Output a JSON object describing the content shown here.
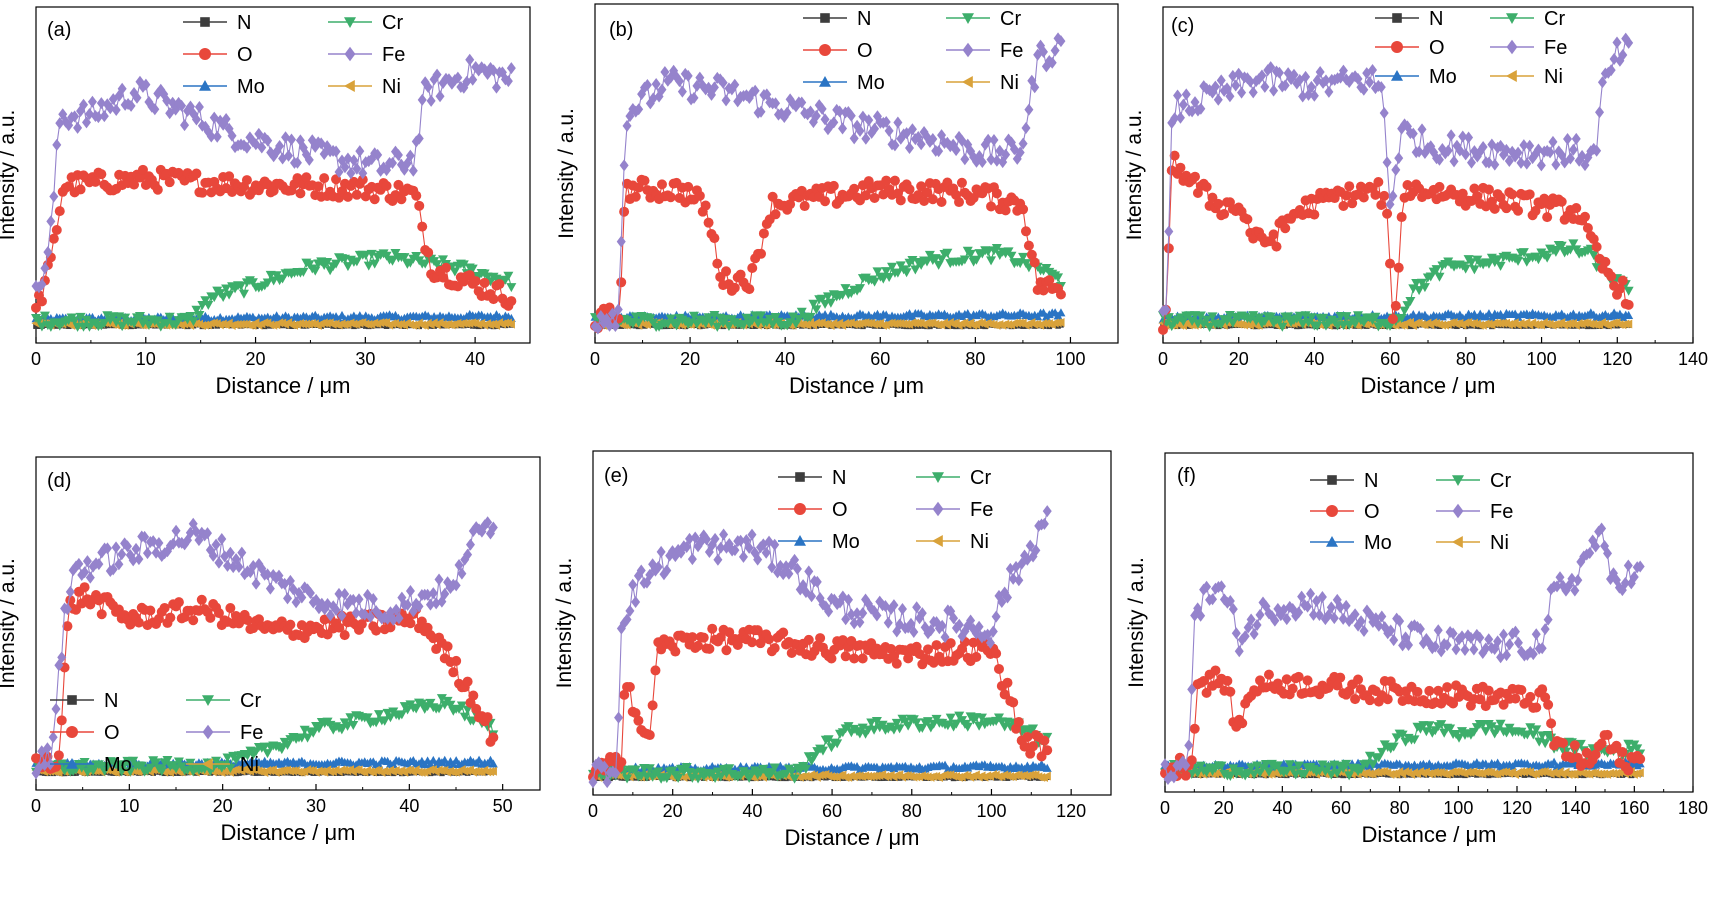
{
  "figure": {
    "series_colors": {
      "N": "#3d3d3d",
      "O": "#e8473b",
      "Mo": "#2a74c4",
      "Cr": "#3dae6b",
      "Fe": "#9583cc",
      "Ni": "#d9a23a"
    },
    "series_markers": {
      "N": "square",
      "O": "circle",
      "Mo": "triangle-up",
      "Cr": "triangle-down",
      "Fe": "diamond",
      "Ni": "triangle-left"
    }
  },
  "chart_data": [
    {
      "type": "line",
      "panel_label": "(a)",
      "xlabel": "Distance / μm",
      "ylabel": "Intensity / a.u.",
      "xlim": [
        0,
        45
      ],
      "xticks": [
        0,
        10,
        20,
        30,
        40
      ],
      "x_max": 43.3,
      "legend": [
        "N",
        "O",
        "Mo",
        "Cr",
        "Fe",
        "Ni"
      ],
      "legend_placement": "top-center",
      "profiles": {
        "Fe": [
          [
            0,
            0.1
          ],
          [
            1.2,
            0.25
          ],
          [
            2.2,
            0.7
          ],
          [
            5,
            0.7
          ],
          [
            9,
            0.78
          ],
          [
            13,
            0.72
          ],
          [
            18,
            0.64
          ],
          [
            22,
            0.6
          ],
          [
            28,
            0.55
          ],
          [
            32,
            0.53
          ],
          [
            34.5,
            0.56
          ],
          [
            35.5,
            0.78
          ],
          [
            40,
            0.85
          ],
          [
            43.3,
            0.82
          ]
        ],
        "O": [
          [
            0,
            0.05
          ],
          [
            1.3,
            0.2
          ],
          [
            2.5,
            0.47
          ],
          [
            10,
            0.49
          ],
          [
            20,
            0.47
          ],
          [
            30,
            0.46
          ],
          [
            34.5,
            0.44
          ],
          [
            36,
            0.2
          ],
          [
            40,
            0.14
          ],
          [
            43.3,
            0.1
          ]
        ],
        "Cr": [
          [
            0,
            0.02
          ],
          [
            14,
            0.02
          ],
          [
            16,
            0.1
          ],
          [
            20,
            0.14
          ],
          [
            25,
            0.2
          ],
          [
            32,
            0.23
          ],
          [
            38,
            0.2
          ],
          [
            43.3,
            0.15
          ]
        ],
        "Mo": [
          [
            0,
            0.025
          ],
          [
            43.3,
            0.035
          ]
        ],
        "N": [
          [
            0,
            0.005
          ],
          [
            43.3,
            0.005
          ]
        ],
        "Ni": [
          [
            0,
            0.01
          ],
          [
            43.3,
            0.01
          ]
        ]
      }
    },
    {
      "type": "line",
      "panel_label": "(b)",
      "xlabel": "Distance / μm",
      "ylabel": "Intensity / a.u.",
      "xlim": [
        0,
        110
      ],
      "xticks": [
        0,
        20,
        40,
        60,
        80,
        100
      ],
      "x_max": 98,
      "legend": [
        "N",
        "O",
        "Mo",
        "Cr",
        "Fe",
        "Ni"
      ],
      "legend_placement": "top-right",
      "profiles": {
        "Fe": [
          [
            0,
            0.03
          ],
          [
            5,
            0.05
          ],
          [
            6.5,
            0.7
          ],
          [
            15,
            0.8
          ],
          [
            25,
            0.78
          ],
          [
            40,
            0.72
          ],
          [
            55,
            0.66
          ],
          [
            70,
            0.62
          ],
          [
            82,
            0.57
          ],
          [
            89,
            0.57
          ],
          [
            91,
            0.68
          ],
          [
            93,
            0.88
          ],
          [
            98,
            0.92
          ]
        ],
        "O": [
          [
            0,
            0.02
          ],
          [
            5,
            0.04
          ],
          [
            6.5,
            0.45
          ],
          [
            18,
            0.45
          ],
          [
            23,
            0.4
          ],
          [
            27,
            0.15
          ],
          [
            33,
            0.16
          ],
          [
            37,
            0.4
          ],
          [
            45,
            0.42
          ],
          [
            60,
            0.45
          ],
          [
            80,
            0.44
          ],
          [
            90,
            0.4
          ],
          [
            93,
            0.14
          ],
          [
            98,
            0.12
          ]
        ],
        "Cr": [
          [
            0,
            0.02
          ],
          [
            42,
            0.02
          ],
          [
            48,
            0.08
          ],
          [
            58,
            0.16
          ],
          [
            70,
            0.22
          ],
          [
            85,
            0.24
          ],
          [
            93,
            0.2
          ],
          [
            98,
            0.15
          ]
        ],
        "Mo": [
          [
            0,
            0.03
          ],
          [
            98,
            0.04
          ]
        ],
        "N": [
          [
            0,
            0.005
          ],
          [
            98,
            0.005
          ]
        ],
        "Ni": [
          [
            0,
            0.01
          ],
          [
            98,
            0.01
          ]
        ]
      }
    },
    {
      "type": "line",
      "panel_label": "(c)",
      "xlabel": "Distance / μm",
      "ylabel": "Intensity / a.u.",
      "xlim": [
        0,
        140
      ],
      "xticks": [
        0,
        20,
        40,
        60,
        80,
        100,
        120,
        140
      ],
      "x_max": 123,
      "legend": [
        "N",
        "O",
        "Mo",
        "Cr",
        "Fe",
        "Ni"
      ],
      "legend_placement": "top-right",
      "profiles": {
        "Fe": [
          [
            0,
            0.02
          ],
          [
            1,
            0.05
          ],
          [
            2.5,
            0.72
          ],
          [
            10,
            0.75
          ],
          [
            25,
            0.82
          ],
          [
            40,
            0.8
          ],
          [
            55,
            0.82
          ],
          [
            58,
            0.78
          ],
          [
            60,
            0.4
          ],
          [
            63,
            0.65
          ],
          [
            70,
            0.6
          ],
          [
            90,
            0.58
          ],
          [
            110,
            0.58
          ],
          [
            114,
            0.56
          ],
          [
            116,
            0.78
          ],
          [
            120,
            0.9
          ],
          [
            123,
            0.92
          ]
        ],
        "O": [
          [
            0,
            0.02
          ],
          [
            1,
            0.05
          ],
          [
            2.5,
            0.55
          ],
          [
            10,
            0.45
          ],
          [
            15,
            0.4
          ],
          [
            20,
            0.4
          ],
          [
            25,
            0.28
          ],
          [
            30,
            0.3
          ],
          [
            35,
            0.38
          ],
          [
            45,
            0.43
          ],
          [
            57,
            0.45
          ],
          [
            59,
            0.4
          ],
          [
            60.5,
            0.05
          ],
          [
            62,
            0.1
          ],
          [
            63.5,
            0.46
          ],
          [
            70,
            0.45
          ],
          [
            90,
            0.42
          ],
          [
            110,
            0.38
          ],
          [
            115,
            0.22
          ],
          [
            120,
            0.14
          ],
          [
            123,
            0.1
          ]
        ],
        "Cr": [
          [
            0,
            0.02
          ],
          [
            60,
            0.02
          ],
          [
            63,
            0.04
          ],
          [
            66,
            0.12
          ],
          [
            75,
            0.2
          ],
          [
            90,
            0.22
          ],
          [
            108,
            0.26
          ],
          [
            113,
            0.24
          ],
          [
            117,
            0.18
          ],
          [
            123,
            0.12
          ]
        ],
        "Mo": [
          [
            0,
            0.03
          ],
          [
            123,
            0.04
          ]
        ],
        "N": [
          [
            0,
            0.005
          ],
          [
            123,
            0.005
          ]
        ],
        "Ni": [
          [
            0,
            0.01
          ],
          [
            123,
            0.01
          ]
        ]
      }
    },
    {
      "type": "line",
      "panel_label": "(d)",
      "xlabel": "Distance / μm",
      "ylabel": "Intensity / a.u.",
      "xlim": [
        0,
        54
      ],
      "xticks": [
        0,
        10,
        20,
        30,
        40,
        50
      ],
      "x_max": 49,
      "legend": [
        "N",
        "O",
        "Mo",
        "Cr",
        "Fe",
        "Ni"
      ],
      "legend_placement": "middle-left",
      "profiles": {
        "Fe": [
          [
            0,
            0.03
          ],
          [
            1.5,
            0.05
          ],
          [
            3,
            0.5
          ],
          [
            4,
            0.68
          ],
          [
            10,
            0.74
          ],
          [
            17,
            0.8
          ],
          [
            25,
            0.65
          ],
          [
            30,
            0.58
          ],
          [
            38,
            0.55
          ],
          [
            42,
            0.6
          ],
          [
            45,
            0.62
          ],
          [
            46,
            0.75
          ],
          [
            49,
            0.85
          ]
        ],
        "O": [
          [
            0,
            0.03
          ],
          [
            2.5,
            0.06
          ],
          [
            3.5,
            0.55
          ],
          [
            5,
            0.6
          ],
          [
            10,
            0.52
          ],
          [
            18,
            0.55
          ],
          [
            25,
            0.48
          ],
          [
            35,
            0.5
          ],
          [
            41,
            0.52
          ],
          [
            44,
            0.4
          ],
          [
            47,
            0.25
          ],
          [
            49,
            0.12
          ]
        ],
        "Cr": [
          [
            0,
            0.02
          ],
          [
            20,
            0.03
          ],
          [
            23,
            0.06
          ],
          [
            30,
            0.15
          ],
          [
            38,
            0.2
          ],
          [
            44,
            0.24
          ],
          [
            49,
            0.15
          ]
        ],
        "Mo": [
          [
            0,
            0.03
          ],
          [
            49,
            0.04
          ]
        ],
        "N": [
          [
            0,
            0.005
          ],
          [
            49,
            0.005
          ]
        ],
        "Ni": [
          [
            0,
            0.01
          ],
          [
            49,
            0.01
          ]
        ]
      }
    },
    {
      "type": "line",
      "panel_label": "(e)",
      "xlabel": "Distance / μm",
      "ylabel": "Intensity / a.u.",
      "xlim": [
        0,
        130
      ],
      "xticks": [
        0,
        20,
        40,
        60,
        80,
        100,
        120
      ],
      "x_max": 114,
      "legend": [
        "N",
        "O",
        "Mo",
        "Cr",
        "Fe",
        "Ni"
      ],
      "legend_placement": "top-right",
      "profiles": {
        "Fe": [
          [
            0,
            0.01
          ],
          [
            6,
            0.03
          ],
          [
            7,
            0.5
          ],
          [
            10,
            0.6
          ],
          [
            15,
            0.68
          ],
          [
            25,
            0.75
          ],
          [
            40,
            0.75
          ],
          [
            50,
            0.68
          ],
          [
            60,
            0.56
          ],
          [
            75,
            0.52
          ],
          [
            90,
            0.5
          ],
          [
            100,
            0.48
          ],
          [
            103,
            0.6
          ],
          [
            108,
            0.7
          ],
          [
            114,
            0.85
          ]
        ],
        "O": [
          [
            0,
            0.02
          ],
          [
            7,
            0.05
          ],
          [
            8,
            0.35
          ],
          [
            11,
            0.2
          ],
          [
            14,
            0.1
          ],
          [
            16,
            0.42
          ],
          [
            25,
            0.45
          ],
          [
            40,
            0.45
          ],
          [
            60,
            0.42
          ],
          [
            80,
            0.4
          ],
          [
            100,
            0.42
          ],
          [
            103,
            0.32
          ],
          [
            108,
            0.12
          ],
          [
            114,
            0.1
          ]
        ],
        "Cr": [
          [
            0,
            0.02
          ],
          [
            52,
            0.02
          ],
          [
            55,
            0.08
          ],
          [
            65,
            0.16
          ],
          [
            80,
            0.18
          ],
          [
            100,
            0.19
          ],
          [
            108,
            0.16
          ],
          [
            114,
            0.12
          ]
        ],
        "Mo": [
          [
            0,
            0.03
          ],
          [
            114,
            0.04
          ]
        ],
        "N": [
          [
            0,
            0.005
          ],
          [
            114,
            0.005
          ]
        ],
        "Ni": [
          [
            0,
            0.01
          ],
          [
            114,
            0.01
          ]
        ]
      }
    },
    {
      "type": "line",
      "panel_label": "(f)",
      "xlabel": "Distance / μm",
      "ylabel": "Intensity / a.u.",
      "xlim": [
        0,
        180
      ],
      "xticks": [
        0,
        20,
        40,
        60,
        80,
        100,
        120,
        140,
        160,
        180
      ],
      "x_max": 162,
      "legend": [
        "N",
        "O",
        "Mo",
        "Cr",
        "Fe",
        "Ni"
      ],
      "legend_placement": "top-center",
      "profiles": {
        "Fe": [
          [
            0,
            0.02
          ],
          [
            8,
            0.03
          ],
          [
            10,
            0.55
          ],
          [
            18,
            0.62
          ],
          [
            22,
            0.55
          ],
          [
            25,
            0.45
          ],
          [
            35,
            0.55
          ],
          [
            50,
            0.57
          ],
          [
            70,
            0.5
          ],
          [
            90,
            0.44
          ],
          [
            110,
            0.42
          ],
          [
            130,
            0.44
          ],
          [
            132,
            0.6
          ],
          [
            140,
            0.65
          ],
          [
            148,
            0.8
          ],
          [
            152,
            0.65
          ],
          [
            162,
            0.66
          ]
        ],
        "O": [
          [
            0,
            0.02
          ],
          [
            9,
            0.04
          ],
          [
            11,
            0.3
          ],
          [
            20,
            0.32
          ],
          [
            25,
            0.15
          ],
          [
            30,
            0.3
          ],
          [
            50,
            0.3
          ],
          [
            70,
            0.28
          ],
          [
            90,
            0.27
          ],
          [
            110,
            0.26
          ],
          [
            130,
            0.25
          ],
          [
            133,
            0.1
          ],
          [
            145,
            0.04
          ],
          [
            150,
            0.13
          ],
          [
            155,
            0.05
          ],
          [
            162,
            0.05
          ]
        ],
        "Cr": [
          [
            0,
            0.02
          ],
          [
            65,
            0.02
          ],
          [
            70,
            0.05
          ],
          [
            80,
            0.12
          ],
          [
            90,
            0.16
          ],
          [
            100,
            0.14
          ],
          [
            110,
            0.16
          ],
          [
            125,
            0.14
          ],
          [
            135,
            0.1
          ],
          [
            145,
            0.08
          ],
          [
            162,
            0.09
          ]
        ],
        "Mo": [
          [
            0,
            0.03
          ],
          [
            162,
            0.04
          ]
        ],
        "N": [
          [
            0,
            0.005
          ],
          [
            162,
            0.005
          ]
        ],
        "Ni": [
          [
            0,
            0.01
          ],
          [
            162,
            0.01
          ]
        ]
      }
    }
  ]
}
